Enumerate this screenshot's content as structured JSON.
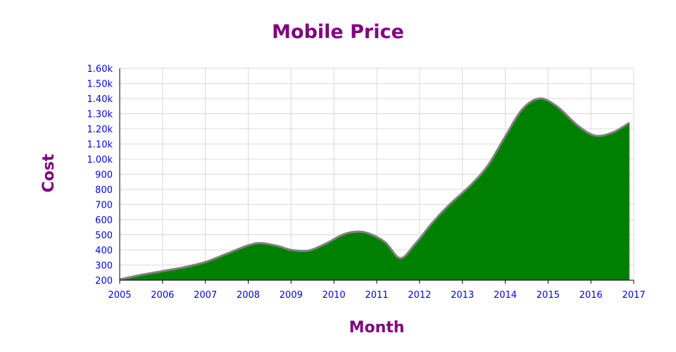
{
  "chart_data": {
    "type": "area",
    "title": "Mobile Price",
    "xlabel": "Month",
    "ylabel": "Cost",
    "x": [
      2005,
      2006,
      2007,
      2008,
      2009,
      2010,
      2011,
      2012,
      2013,
      2014,
      2015,
      2016,
      2017
    ],
    "x_ticks": [
      "2005",
      "2006",
      "2007",
      "2008",
      "2009",
      "2010",
      "2011",
      "2012",
      "2013",
      "2014",
      "2015",
      "2016",
      "2017"
    ],
    "y_ticks": [
      "200",
      "300",
      "400",
      "500",
      "600",
      "700",
      "800",
      "900",
      "1.00k",
      "1.10k",
      "1.20k",
      "1.30k",
      "1.40k",
      "1.50k",
      "1.60k"
    ],
    "xlim": [
      2005,
      2017
    ],
    "ylim": [
      200,
      1600
    ],
    "grid": true,
    "series": [
      {
        "x": [
          2005,
          2005.5,
          2006,
          2006.5,
          2007,
          2007.5,
          2008,
          2008.3,
          2008.7,
          2009,
          2009.4,
          2009.8,
          2010.2,
          2010.5,
          2010.8,
          2011.2,
          2011.55,
          2011.9,
          2012.3,
          2012.7,
          2013.2,
          2013.6,
          2014,
          2014.4,
          2014.8,
          2015.2,
          2015.7,
          2016.1,
          2016.5,
          2016.9
        ],
        "values": [
          205,
          235,
          260,
          285,
          320,
          375,
          430,
          445,
          425,
          400,
          395,
          440,
          500,
          520,
          510,
          450,
          345,
          440,
          580,
          700,
          830,
          960,
          1150,
          1330,
          1400,
          1350,
          1220,
          1155,
          1175,
          1240
        ]
      }
    ]
  },
  "colors": {
    "title": "#800080",
    "axis_title": "#800080",
    "tick_label": "#0000ff",
    "area_fill": "#008000",
    "line": "#808080",
    "grid": "#d9d9d9",
    "axis": "#000000"
  }
}
